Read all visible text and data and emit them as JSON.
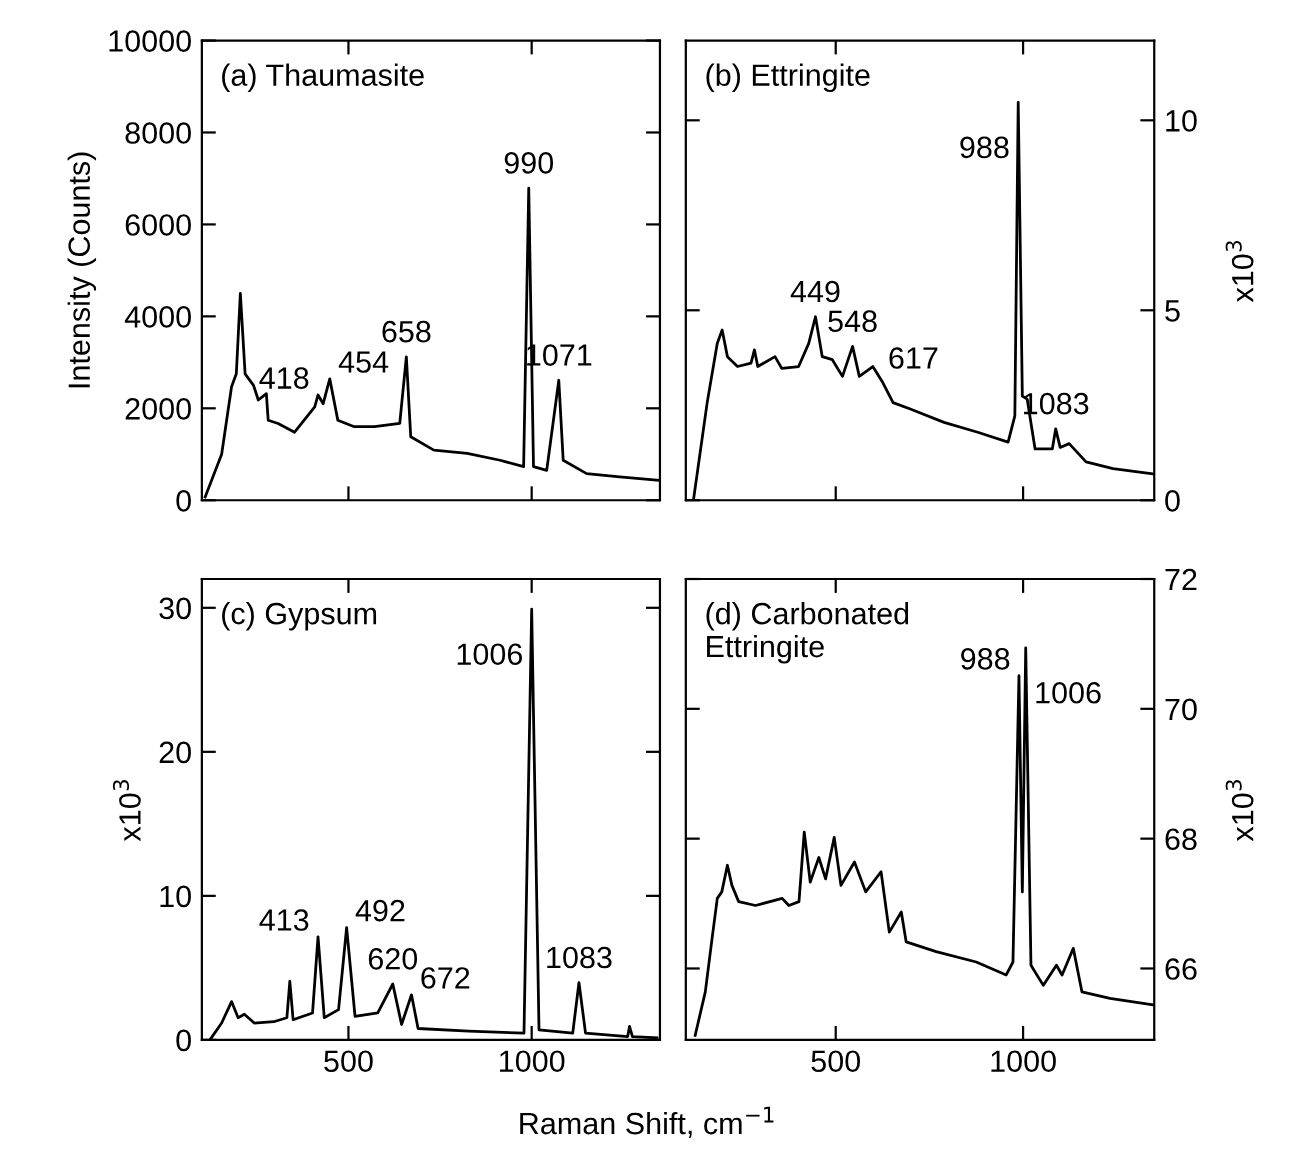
{
  "chart_data": [
    {
      "type": "line",
      "title": "(a) Thaumasite",
      "ylabel": "Intensity (Counts)",
      "xlim": [
        100,
        1350
      ],
      "xticks": [
        500,
        1000
      ],
      "ylim": [
        0,
        10000
      ],
      "yticks": [
        0,
        2000,
        4000,
        6000,
        8000,
        10000
      ],
      "tick_labels": "y",
      "series": [
        {
          "color": "#000000",
          "x": [
            109,
            154,
            181,
            194,
            205,
            218,
            241,
            254,
            276,
            281,
            308,
            353,
            408,
            417,
            431,
            449,
            471,
            516,
            571,
            640,
            658,
            670,
            733,
            824,
            914,
            978,
            992,
            1005,
            1041,
            1074,
            1086,
            1150,
            1240,
            1345
          ],
          "values": [
            70,
            1000,
            2470,
            2750,
            4500,
            2750,
            2500,
            2180,
            2320,
            1740,
            1670,
            1480,
            2030,
            2290,
            2100,
            2640,
            1740,
            1600,
            1600,
            1670,
            3120,
            1380,
            1090,
            1020,
            870,
            730,
            6790,
            730,
            650,
            2610,
            870,
            580,
            510,
            435
          ]
        }
      ],
      "annotations": [
        {
          "text": "418",
          "x": 417,
          "y": 2290
        },
        {
          "text": "454",
          "x": 449,
          "y": 2640
        },
        {
          "text": "658",
          "x": 658,
          "y": 3120
        },
        {
          "text": "990",
          "x": 992,
          "y": 6790
        },
        {
          "text": "1071",
          "x": 1074,
          "y": 2610
        }
      ]
    },
    {
      "type": "line",
      "title": "(b) Ettringite",
      "ylabel": "x10$^{3}$",
      "xlim": [
        100,
        1350
      ],
      "xticks": [
        500,
        1000
      ],
      "ylim": [
        0,
        12.1
      ],
      "yticks": [
        0,
        5,
        10
      ],
      "tick_labels": "y",
      "series": [
        {
          "color": "#000000",
          "x": [
            121,
            157,
            184,
            197,
            211,
            238,
            274,
            283,
            292,
            338,
            356,
            401,
            428,
            446,
            464,
            491,
            518,
            545,
            563,
            599,
            626,
            653,
            699,
            789,
            879,
            960,
            978,
            987,
            998,
            1011,
            1032,
            1078,
            1087,
            1099,
            1123,
            1168,
            1240,
            1348
          ],
          "values": [
            0.05,
            2.57,
            4.13,
            4.48,
            3.78,
            3.52,
            3.61,
            3.96,
            3.52,
            3.78,
            3.47,
            3.52,
            4.13,
            4.83,
            3.78,
            3.7,
            3.26,
            4.05,
            3.26,
            3.52,
            3.09,
            2.57,
            2.4,
            2.05,
            1.79,
            1.53,
            2.22,
            10.47,
            2.74,
            2.66,
            1.35,
            1.35,
            1.88,
            1.39,
            1.49,
            1.01,
            0.83,
            0.69
          ]
        }
      ],
      "annotations": [
        {
          "text": "449",
          "x": 446,
          "y": 4.83
        },
        {
          "text": "548",
          "x": 545,
          "y": 4.05
        },
        {
          "text": "617",
          "x": 617,
          "y": 3.3
        },
        {
          "text": "988",
          "x": 987,
          "y": 10.47
        },
        {
          "text": "1083",
          "x": 1087,
          "y": 1.88
        }
      ]
    },
    {
      "type": "line",
      "title": "(c) Gypsum",
      "ylabel": "x10$^{3}$",
      "xlabel": "Raman Shift, cm$^{−1}$",
      "xlim": [
        100,
        1350
      ],
      "xticks": [
        500,
        1000
      ],
      "ylim": [
        0,
        32
      ],
      "yticks": [
        0,
        10,
        20,
        30
      ],
      "series": [
        {
          "color": "#000000",
          "x": [
            122,
            154,
            181,
            199,
            216,
            243,
            296,
            332,
            340,
            349,
            402,
            417,
            434,
            473,
            495,
            518,
            580,
            621,
            645,
            672,
            690,
            828,
            979,
            1000,
            1020,
            1112,
            1129,
            1147,
            1262,
            1267,
            1275,
            1342
          ],
          "values": [
            0,
            1.17,
            2.66,
            1.54,
            1.78,
            1.17,
            1.26,
            1.54,
            4.07,
            1.4,
            1.87,
            7.15,
            1.54,
            2.1,
            7.8,
            1.64,
            1.87,
            3.88,
            1.07,
            3.13,
            0.79,
            0.61,
            0.47,
            29.9,
            0.7,
            0.47,
            3.97,
            0.47,
            0.23,
            0.93,
            0.23,
            0.14
          ]
        }
      ],
      "annotations": [
        {
          "text": "413",
          "x": 417,
          "y": 7.15
        },
        {
          "text": "492",
          "x": 495,
          "y": 7.8
        },
        {
          "text": "620",
          "x": 621,
          "y": 3.88
        },
        {
          "text": "672",
          "x": 672,
          "y": 3.13
        },
        {
          "text": "1006",
          "x": 1000,
          "y": 29.9
        },
        {
          "text": "1083",
          "x": 1129,
          "y": 3.97
        }
      ]
    },
    {
      "type": "line",
      "title": "(d) Carbonated\nEttringite",
      "ylabel": "x10$^{3}$",
      "xlim": [
        100,
        1350
      ],
      "xticks": [
        500,
        1000
      ],
      "ylim": [
        64.9,
        72
      ],
      "yticks": [
        66,
        68,
        70,
        72
      ],
      "series": [
        {
          "color": "#000000",
          "x": [
            125,
            152,
            170,
            184,
            196,
            211,
            223,
            241,
            286,
            357,
            375,
            402,
            416,
            432,
            455,
            473,
            496,
            514,
            550,
            580,
            621,
            643,
            675,
            688,
            768,
            875,
            955,
            973,
            989,
            998,
            1007,
            1021,
            1054,
            1089,
            1104,
            1134,
            1157,
            1232,
            1348
          ],
          "values": [
            64.97,
            65.64,
            66.46,
            67.08,
            67.18,
            67.59,
            67.28,
            67.03,
            66.97,
            67.08,
            66.97,
            67.03,
            68.1,
            67.33,
            67.71,
            67.38,
            68.02,
            67.28,
            67.64,
            67.18,
            67.49,
            66.56,
            66.87,
            66.41,
            66.26,
            66.1,
            65.9,
            66.1,
            70.51,
            67.18,
            70.94,
            66.05,
            65.74,
            66.05,
            65.9,
            66.31,
            65.64,
            65.54,
            65.44
          ]
        }
      ],
      "annotations": [
        {
          "text": "988",
          "x": 989,
          "y": 70.51
        },
        {
          "text": "1006",
          "x": 1007,
          "y": 70.94
        }
      ]
    }
  ]
}
